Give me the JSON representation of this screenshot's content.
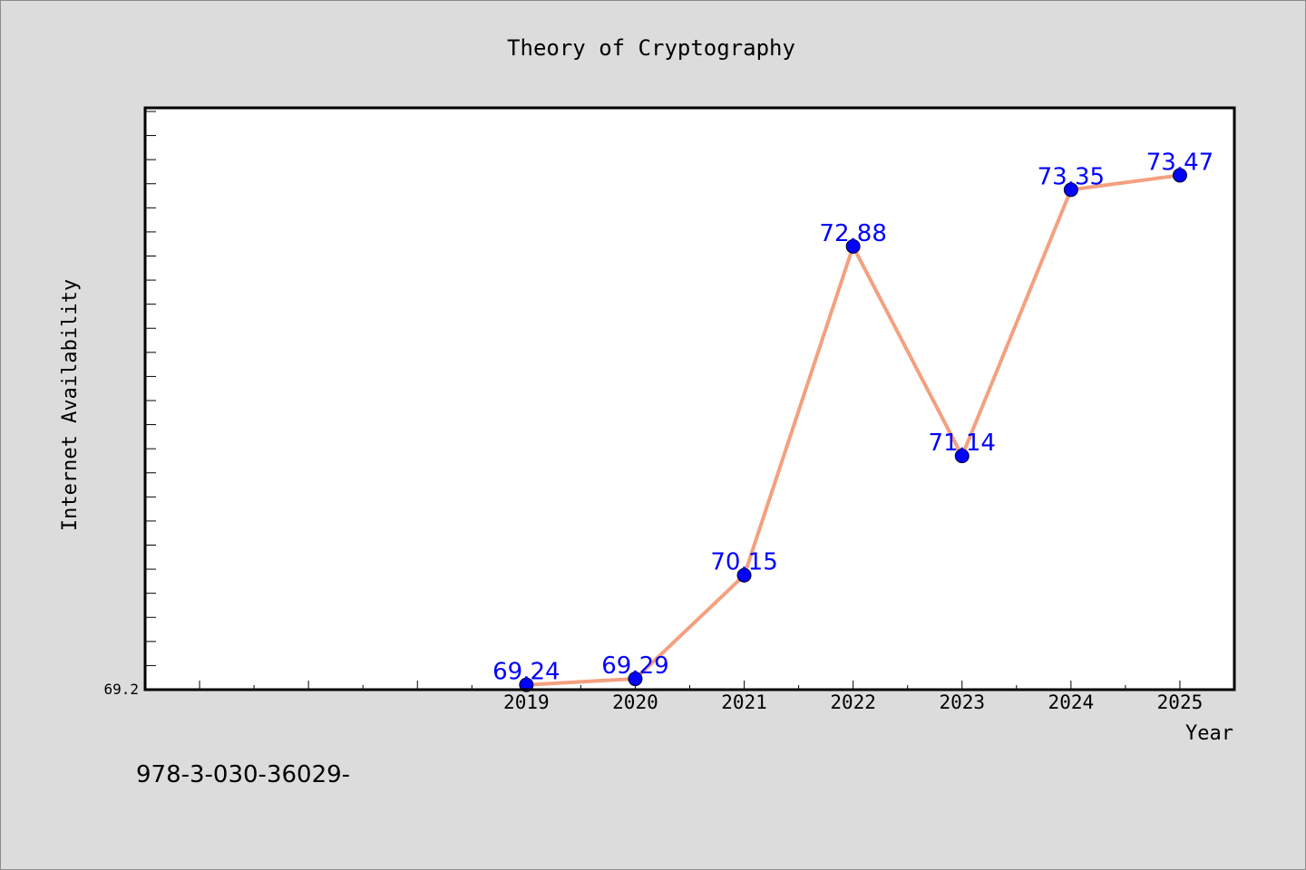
{
  "chart_data": {
    "type": "line",
    "title": "Theory of Cryptography",
    "xlabel": "Year",
    "ylabel": "Internet Availability",
    "x": [
      "2019",
      "2020",
      "2021",
      "2022",
      "2023",
      "2024",
      "2025"
    ],
    "series": [
      {
        "values": [
          69.24,
          69.29,
          70.15,
          72.88,
          71.14,
          73.35,
          73.47
        ]
      }
    ],
    "data_labels": [
      "69.24",
      "69.29",
      "70.15",
      "72.88",
      "71.14",
      "73.35",
      "73.47"
    ],
    "y_tick_labels": [
      "69.2"
    ],
    "ylim": [
      69.2,
      74.03
    ],
    "x_index_range": [
      -3.5,
      6.5
    ],
    "grid": false,
    "legend": "none",
    "colors": {
      "line": "#f4a07f",
      "marker": "#0000ff",
      "data_label": "#0000ff",
      "background": "#dcdcdc",
      "plot_area": "#ffffff"
    }
  },
  "footer_text": "978-3-030-36029-"
}
